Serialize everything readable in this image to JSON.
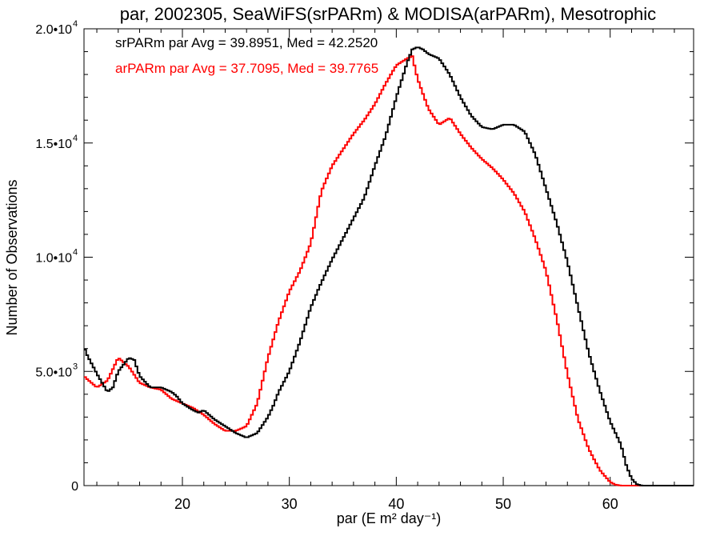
{
  "chart_data": {
    "type": "line",
    "title": "par, 2002305, SeaWiFS(srPARm) & MODISA(arPARm), Mesotrophic",
    "xlabel": "par (E m² day⁻¹)",
    "ylabel": "Number of Observations",
    "xlim": [
      10.8,
      67.8
    ],
    "ylim": [
      0,
      20000
    ],
    "xticks": [
      20,
      30,
      40,
      50,
      60
    ],
    "yticks": [
      {
        "value": 0,
        "mant": "0",
        "exp": ""
      },
      {
        "value": 5000,
        "mant": "5.0•10",
        "exp": "3"
      },
      {
        "value": 10000,
        "mant": "1.0•10",
        "exp": "4"
      },
      {
        "value": 15000,
        "mant": "1.5•10",
        "exp": "4"
      },
      {
        "value": 20000,
        "mant": "2.0•10",
        "exp": "4"
      }
    ],
    "grid": false,
    "legend_position": "top-left",
    "series": [
      {
        "name": "srPARm",
        "label": "srPARm par Avg = 39.8951, Med = 42.2520",
        "color": "#000000",
        "x": [
          10.8,
          11,
          12,
          13,
          13.5,
          14,
          15,
          15.5,
          16,
          17,
          17.5,
          18,
          19,
          19.5,
          20,
          21,
          21.5,
          22,
          22.5,
          23,
          24,
          25,
          26,
          26.5,
          27,
          28,
          28.5,
          29,
          30,
          31,
          32,
          33,
          34,
          35,
          36,
          37,
          38,
          39,
          40,
          41,
          41.5,
          42,
          42.5,
          43,
          44,
          45,
          46,
          47,
          48,
          49,
          50,
          51,
          52,
          53,
          54,
          55,
          56,
          57,
          58,
          59,
          60,
          61,
          61.5,
          62,
          62.5,
          63,
          64,
          66,
          67.8
        ],
        "y": [
          6100,
          5800,
          4900,
          4100,
          4300,
          5000,
          5600,
          5500,
          4800,
          4300,
          4300,
          4300,
          4100,
          3900,
          3600,
          3300,
          3200,
          3300,
          3100,
          2900,
          2600,
          2300,
          2100,
          2200,
          2300,
          3000,
          3500,
          4100,
          5000,
          6300,
          7800,
          8900,
          9900,
          10800,
          11700,
          12600,
          14000,
          15300,
          17000,
          18500,
          19100,
          19200,
          19100,
          18900,
          18700,
          18000,
          17000,
          16200,
          15700,
          15600,
          15800,
          15800,
          15500,
          14500,
          13000,
          11500,
          9800,
          7800,
          5800,
          4200,
          2800,
          1800,
          900,
          300,
          60,
          0,
          0,
          0,
          0
        ]
      },
      {
        "name": "arPARm",
        "label": "arPARm par Avg = 37.7095, Med = 39.7765",
        "color": "#ff0000",
        "x": [
          10.8,
          11,
          12,
          13,
          14,
          15,
          16,
          17,
          18,
          19,
          20,
          21,
          22,
          23,
          24,
          25,
          26,
          27,
          28,
          29,
          30,
          31,
          32,
          33,
          34,
          35,
          36,
          37,
          38,
          39,
          40,
          41,
          41.5,
          42,
          43,
          44,
          45,
          46,
          47,
          48,
          49,
          50,
          51,
          52,
          53,
          54,
          55,
          56,
          57,
          58,
          59,
          60,
          60.5,
          61,
          62,
          63,
          64,
          66,
          67.8
        ],
        "y": [
          4800,
          4700,
          4300,
          4600,
          5600,
          5200,
          4500,
          4300,
          4200,
          3800,
          3600,
          3400,
          3100,
          2700,
          2400,
          2400,
          2600,
          3600,
          5600,
          7200,
          8500,
          9400,
          10600,
          12900,
          14000,
          14700,
          15400,
          16000,
          16700,
          17600,
          18400,
          18700,
          18800,
          17800,
          16500,
          15800,
          16100,
          15400,
          14800,
          14300,
          13900,
          13400,
          12800,
          12000,
          10800,
          9400,
          7300,
          4900,
          2900,
          1600,
          700,
          150,
          40,
          0,
          0,
          0,
          0,
          0,
          0
        ]
      }
    ]
  }
}
